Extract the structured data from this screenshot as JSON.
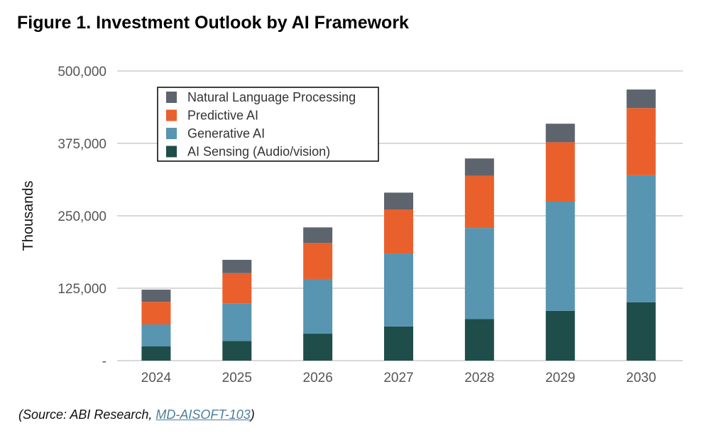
{
  "chart_data": {
    "type": "bar",
    "stacked": true,
    "title": "Figure 1. Investment Outlook by AI Framework",
    "xlabel": "",
    "ylabel": "Thousands",
    "ylim": [
      0,
      500000
    ],
    "yticks": [
      0,
      125000,
      250000,
      375000,
      500000
    ],
    "ytick_labels": [
      "-",
      "125,000",
      "250,000",
      "375,000",
      "500,000"
    ],
    "grid": true,
    "legend_position": "top-left",
    "categories": [
      "2024",
      "2025",
      "2026",
      "2027",
      "2028",
      "2029",
      "2030"
    ],
    "series": [
      {
        "name": "AI Sensing (Audio/vision)",
        "color": "#1f4d4a",
        "values": [
          24500,
          34000,
          46500,
          59000,
          72000,
          86000,
          100500
        ]
      },
      {
        "name": "Generative AI",
        "color": "#5795b1",
        "values": [
          38000,
          65000,
          94500,
          126000,
          157000,
          188500,
          219500
        ]
      },
      {
        "name": "Predictive AI",
        "color": "#e9602c",
        "values": [
          39000,
          52000,
          62000,
          76000,
          90000,
          102500,
          116000
        ]
      },
      {
        "name": "Natural Language Processing",
        "color": "#5d646d",
        "values": [
          21000,
          23000,
          27000,
          29000,
          30000,
          32000,
          32000
        ]
      }
    ]
  },
  "source": {
    "prefix": "(Source: ABI Research, ",
    "link": "MD-AISOFT-103",
    "suffix": ")"
  }
}
